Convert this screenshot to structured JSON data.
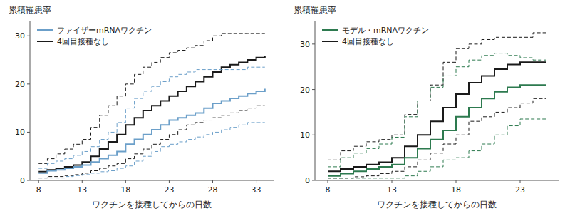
{
  "chart_data": [
    {
      "type": "step",
      "xlabel": "ワクチンを接種してからの日数",
      "ylabel": "累積罹患率",
      "xlim": [
        7,
        35
      ],
      "ylim": [
        0,
        33
      ],
      "xticks": [
        8,
        13,
        18,
        23,
        28,
        33
      ],
      "yticks": [
        0,
        10,
        20,
        30
      ],
      "grid": false,
      "legend": "upper left",
      "x": [
        8,
        9,
        10,
        11,
        12,
        13,
        14,
        15,
        16,
        17,
        18,
        19,
        20,
        21,
        22,
        23,
        24,
        25,
        26,
        27,
        28,
        29,
        30,
        31,
        32,
        33,
        34
      ],
      "series": [
        {
          "name": "ファイザーmRNAワクチン",
          "color": "#6b9fc9",
          "line_style": "solid",
          "values": [
            1.5,
            2.0,
            2.2,
            2.5,
            2.8,
            3.2,
            3.8,
            4.5,
            5.2,
            6.0,
            7.5,
            8.5,
            9.5,
            10.5,
            11.5,
            12.5,
            13.0,
            13.5,
            14.0,
            15.0,
            16.0,
            16.5,
            17.0,
            17.5,
            18.0,
            18.5,
            19.0
          ]
        },
        {
          "color": "#6b9fc9",
          "line_style": "dashed",
          "values": [
            2.5,
            3.5,
            4.0,
            4.5,
            5.2,
            6.0,
            7.0,
            8.5,
            10.0,
            12.0,
            15.0,
            17.0,
            18.5,
            19.5,
            20.5,
            21.5,
            22.0,
            22.5,
            23.0,
            23.0,
            23.0,
            23.0,
            23.0,
            23.0,
            23.5,
            23.5,
            23.5
          ]
        },
        {
          "color": "#6b9fc9",
          "line_style": "dashed",
          "values": [
            0.5,
            0.5,
            0.5,
            0.8,
            1.0,
            1.2,
            1.5,
            1.8,
            2.0,
            2.5,
            3.0,
            4.0,
            5.0,
            6.0,
            7.0,
            7.5,
            8.0,
            8.5,
            9.0,
            9.5,
            10.0,
            10.5,
            11.0,
            11.5,
            12.0,
            12.0,
            12.0
          ]
        },
        {
          "name": "4回目接種なし",
          "color": "#1a1a1a",
          "line_style": "solid",
          "values": [
            1.8,
            2.2,
            2.5,
            2.8,
            3.2,
            3.8,
            5.0,
            6.5,
            8.0,
            9.5,
            11.5,
            13.0,
            14.5,
            15.5,
            16.5,
            17.5,
            18.5,
            19.5,
            20.5,
            21.5,
            22.5,
            23.5,
            24.0,
            24.5,
            25.0,
            25.5,
            25.8
          ]
        },
        {
          "color": "#1a1a1a",
          "line_style": "dashed",
          "values": [
            3.5,
            4.5,
            5.5,
            6.5,
            7.5,
            8.5,
            11.0,
            13.5,
            15.5,
            17.5,
            20.0,
            22.0,
            23.5,
            24.5,
            25.5,
            26.5,
            27.0,
            27.5,
            28.0,
            29.0,
            30.0,
            30.5,
            30.5,
            30.5,
            30.5,
            30.5,
            30.5
          ]
        },
        {
          "color": "#1a1a1a",
          "line_style": "dashed",
          "values": [
            0.5,
            0.8,
            0.8,
            1.0,
            1.2,
            1.5,
            2.0,
            2.5,
            3.0,
            3.5,
            4.5,
            5.5,
            6.5,
            7.5,
            8.5,
            9.5,
            10.5,
            11.5,
            12.0,
            12.5,
            13.0,
            13.5,
            14.0,
            14.5,
            15.0,
            15.5,
            15.5
          ]
        }
      ]
    },
    {
      "type": "step",
      "xlabel": "ワクチンを接種してからの日数",
      "ylabel": "累積罹患率",
      "xlim": [
        7,
        26
      ],
      "ylim": [
        0,
        35
      ],
      "xticks": [
        8,
        13,
        18,
        23
      ],
      "yticks": [
        0,
        10,
        20,
        30
      ],
      "grid": false,
      "legend": "upper left",
      "x": [
        8,
        9,
        10,
        11,
        12,
        13,
        14,
        15,
        16,
        17,
        18,
        19,
        20,
        21,
        22,
        23,
        24,
        25
      ],
      "series": [
        {
          "name": "モデル・mRNAワクチン",
          "color": "#2d7a4f",
          "line_style": "solid",
          "values": [
            1.0,
            1.5,
            2.0,
            2.5,
            3.0,
            3.5,
            5.0,
            7.0,
            9.0,
            11.0,
            14.0,
            16.0,
            18.0,
            19.5,
            20.5,
            21.0,
            21.0,
            21.0
          ]
        },
        {
          "color": "#2d7a4f",
          "line_style": "dashed",
          "values": [
            3.0,
            5.0,
            6.0,
            7.0,
            8.0,
            9.5,
            14.0,
            17.5,
            20.5,
            23.0,
            25.0,
            26.5,
            27.5,
            28.0,
            27.5,
            27.0,
            26.5,
            26.5
          ]
        },
        {
          "color": "#2d7a4f",
          "line_style": "dashed",
          "values": [
            0.5,
            0.5,
            0.5,
            0.5,
            0.5,
            0.5,
            1.0,
            2.0,
            3.0,
            4.5,
            5.0,
            6.5,
            8.0,
            10.0,
            12.0,
            13.5,
            13.5,
            13.5
          ]
        },
        {
          "name": "4回目接種なし",
          "color": "#1a1a1a",
          "line_style": "solid",
          "values": [
            2.0,
            2.5,
            3.0,
            3.5,
            4.0,
            5.0,
            7.5,
            10.0,
            13.0,
            16.0,
            19.0,
            21.5,
            23.0,
            24.5,
            25.5,
            26.0,
            26.0,
            26.0
          ]
        },
        {
          "color": "#1a1a1a",
          "line_style": "dashed",
          "values": [
            4.5,
            6.5,
            7.5,
            8.5,
            9.0,
            10.0,
            14.5,
            17.5,
            21.0,
            26.0,
            29.0,
            30.0,
            31.0,
            31.5,
            31.5,
            31.5,
            32.5,
            32.5
          ]
        },
        {
          "color": "#1a1a1a",
          "line_style": "dashed",
          "values": [
            0.5,
            0.5,
            0.8,
            1.0,
            1.5,
            2.0,
            3.0,
            4.5,
            6.0,
            8.0,
            10.0,
            13.0,
            14.0,
            15.0,
            16.0,
            17.0,
            18.0,
            18.0
          ]
        }
      ]
    }
  ]
}
